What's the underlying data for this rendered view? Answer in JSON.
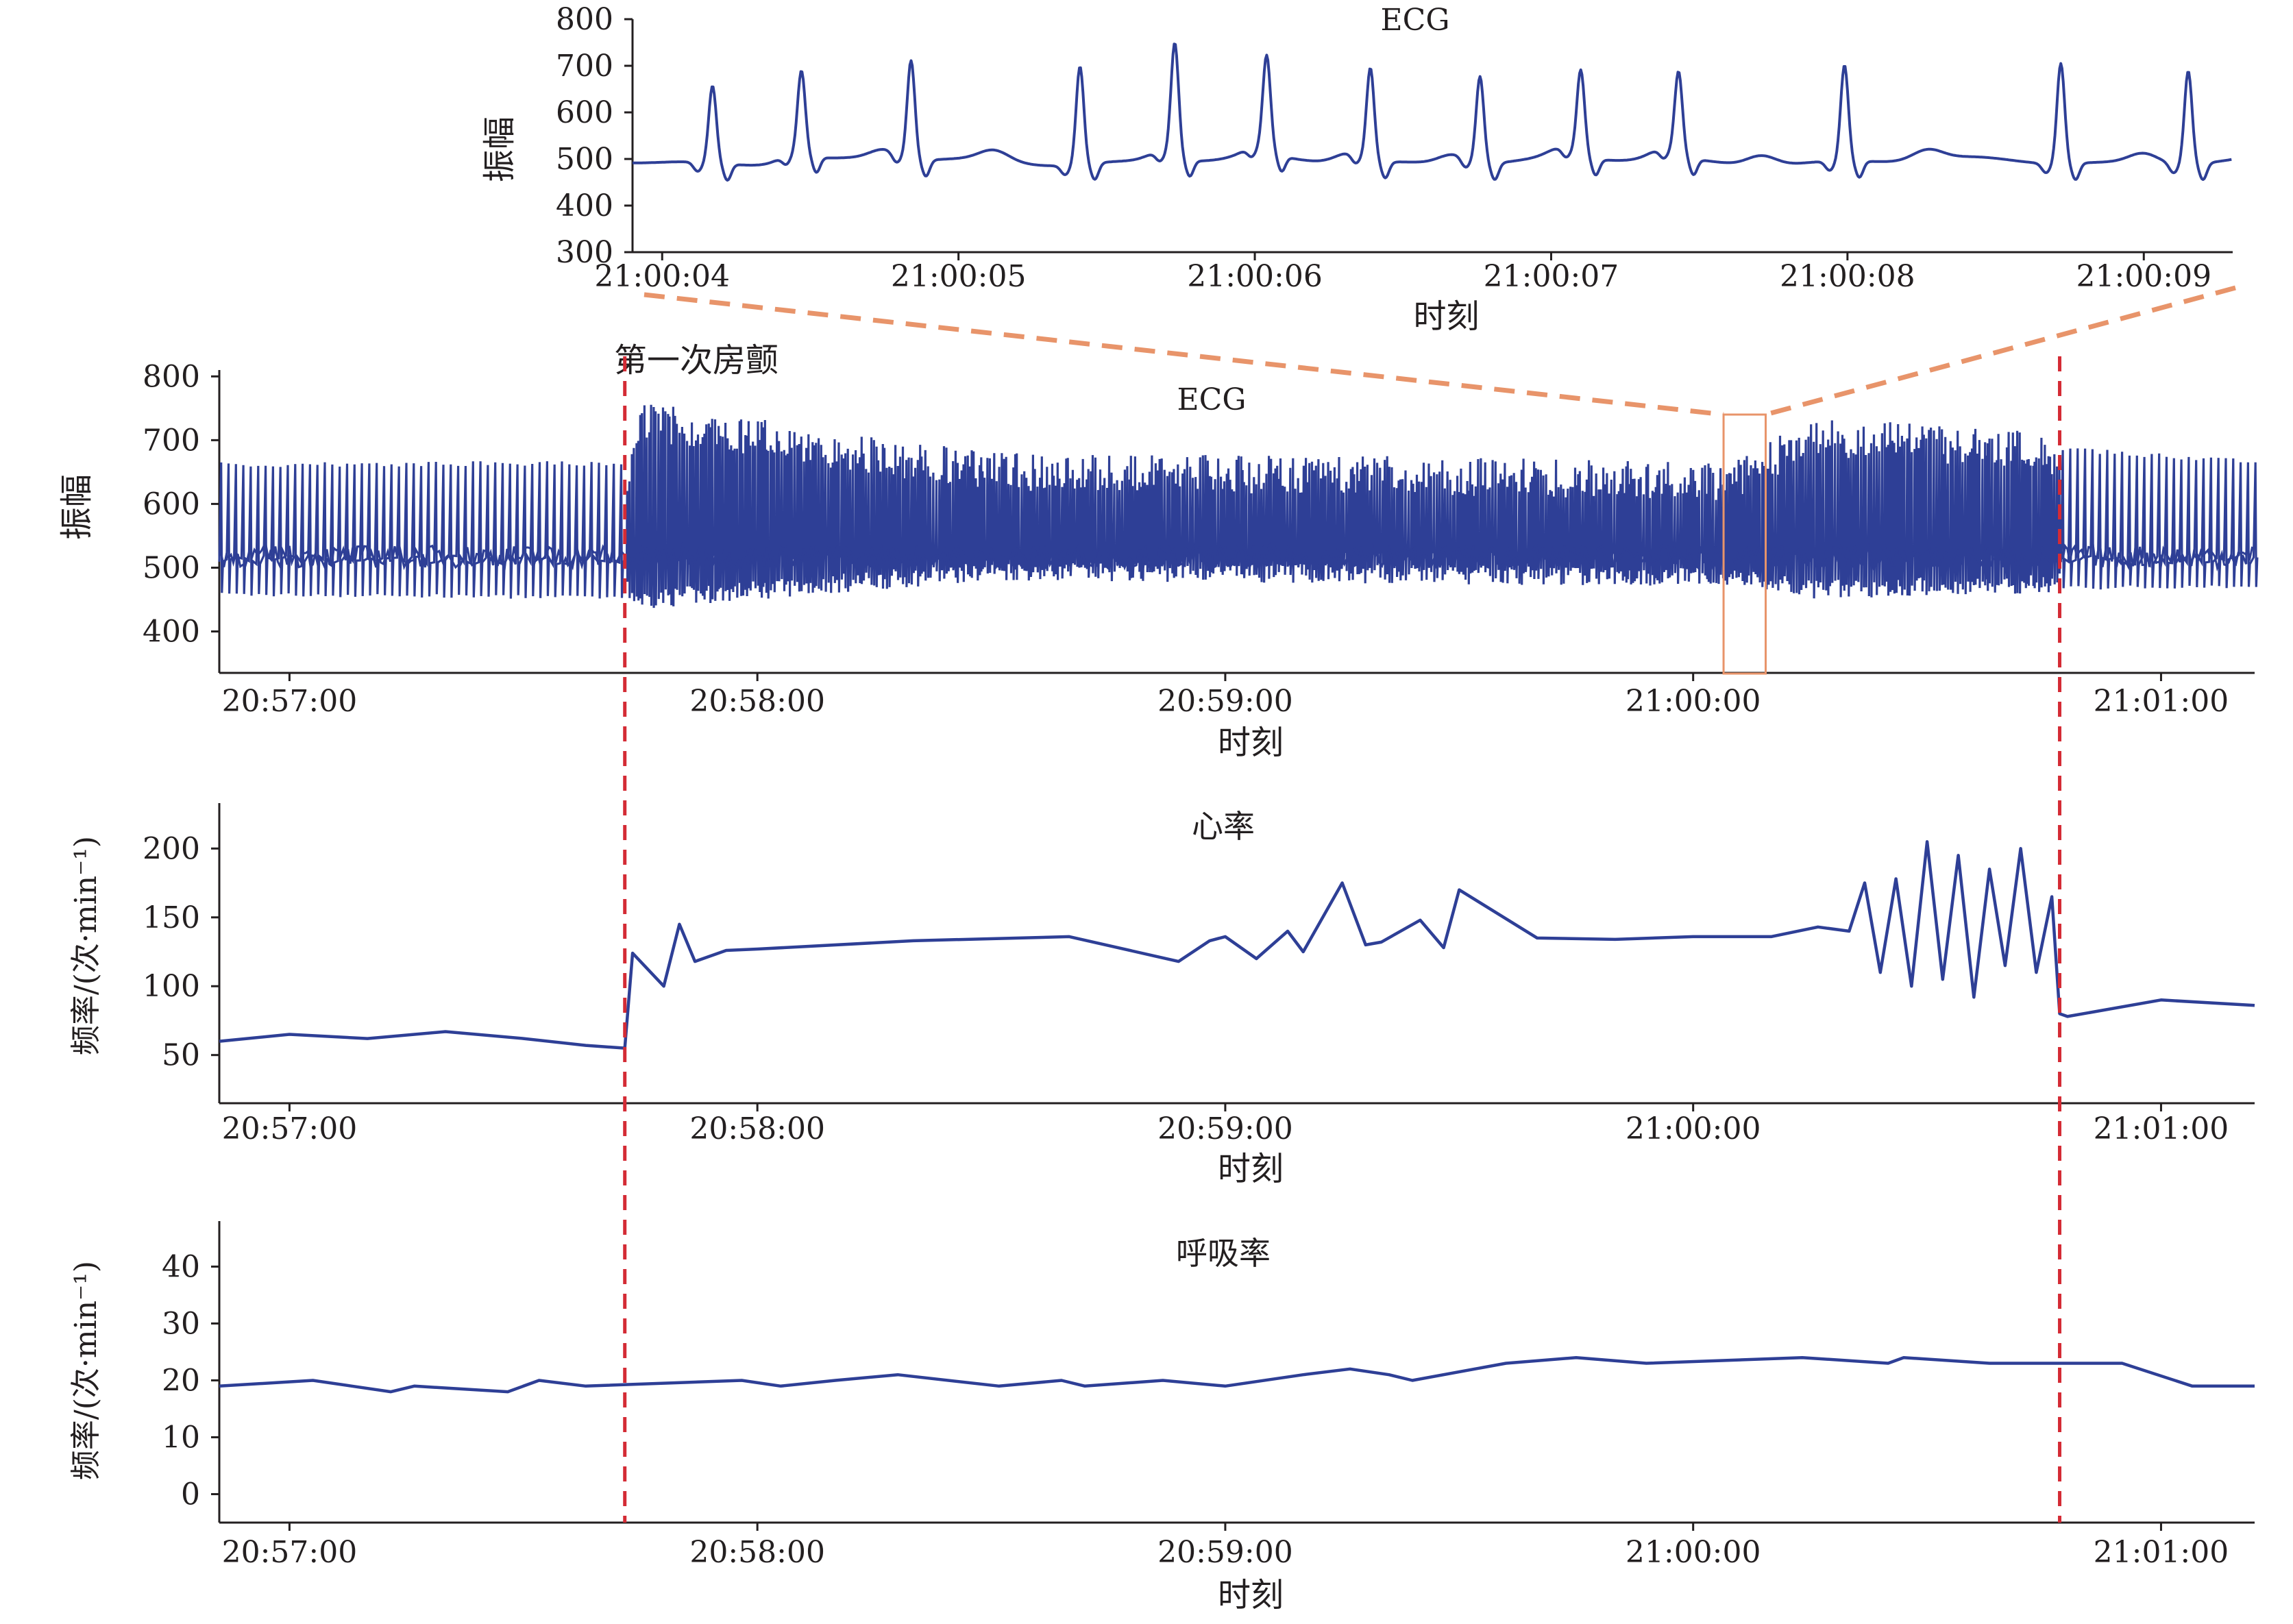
{
  "colors": {
    "series": "#2e3f96",
    "marker": "#d42b35",
    "zoom": "#e8946a",
    "axis": "#231f20"
  },
  "annotation": {
    "label": "第一次房颤",
    "af_start": "20:57:43",
    "af_end": "21:00:47"
  },
  "chart_data": [
    {
      "id": "ecg-zoom",
      "type": "line",
      "title": "ECG",
      "xlabel": "时刻",
      "ylabel": "振幅",
      "ylim": [
        300,
        800
      ],
      "xlim": [
        "21:00:03.9",
        "21:00:09.3"
      ],
      "yticks": [
        300,
        400,
        500,
        600,
        700,
        800
      ],
      "xticks": [
        "21:00:04",
        "21:00:05",
        "21:00:06",
        "21:00:07",
        "21:00:08",
        "21:00:09"
      ],
      "grid": false,
      "series": [
        {
          "r_peak_times_s": [
            4.17,
            4.47,
            4.84,
            5.41,
            5.73,
            6.04,
            6.39,
            6.76,
            7.1,
            7.43,
            7.99,
            8.72,
            9.15
          ],
          "r_peak_values": [
            660,
            670,
            705,
            705,
            735,
            695,
            690,
            680,
            675,
            670,
            700,
            710,
            695
          ],
          "baseline": 495
        }
      ]
    },
    {
      "id": "ecg-full",
      "type": "line",
      "title": "ECG",
      "xlabel": "时刻",
      "ylabel": "振幅",
      "ylim": [
        335,
        810
      ],
      "xlim": [
        "20:56:51",
        "21:01:12"
      ],
      "yticks": [
        400,
        500,
        600,
        700,
        800
      ],
      "xticks": [
        "20:57:00",
        "20:58:00",
        "20:59:00",
        "21:00:00",
        "21:01:00"
      ],
      "grid": false,
      "zoom_window": [
        "21:00:03.9",
        "21:00:09.3"
      ],
      "series": [
        {
          "envelope_times": [
            "20:56:51",
            "20:57:43",
            "20:57:45",
            "20:58:30",
            "20:59:20",
            "21:00:05",
            "21:00:15",
            "21:00:45",
            "21:00:47",
            "21:01:12"
          ],
          "upper": [
            665,
            668,
            760,
            680,
            675,
            665,
            735,
            715,
            690,
            670
          ],
          "lower": [
            455,
            450,
            435,
            480,
            475,
            470,
            450,
            460,
            465,
            468
          ]
        }
      ]
    },
    {
      "id": "heart-rate",
      "type": "line",
      "title": "心率",
      "xlabel": "时刻",
      "ylabel": "频率/(次·min⁻¹)",
      "ylim": [
        15,
        233
      ],
      "xlim": [
        "20:56:51",
        "21:01:12"
      ],
      "yticks": [
        50,
        100,
        150,
        200
      ],
      "xticks": [
        "20:57:00",
        "20:58:00",
        "20:59:00",
        "21:00:00",
        "21:01:00"
      ],
      "grid": false,
      "series": [
        {
          "times": [
            "20:56:51",
            "20:57:00",
            "20:57:10",
            "20:57:20",
            "20:57:30",
            "20:57:38",
            "20:57:43",
            "20:57:44",
            "20:57:48",
            "20:57:50",
            "20:57:52",
            "20:57:56",
            "20:58:00",
            "20:58:20",
            "20:58:40",
            "20:58:54",
            "20:58:58",
            "20:59:00",
            "20:59:04",
            "20:59:08",
            "20:59:10",
            "20:59:15",
            "20:59:18",
            "20:59:20",
            "20:59:25",
            "20:59:28",
            "20:59:30",
            "20:59:40",
            "20:59:50",
            "21:00:00",
            "21:00:10",
            "21:00:16",
            "21:00:20",
            "21:00:22",
            "21:00:24",
            "21:00:26",
            "21:00:28",
            "21:00:30",
            "21:00:32",
            "21:00:34",
            "21:00:36",
            "21:00:38",
            "21:00:40",
            "21:00:42",
            "21:00:44",
            "21:00:46",
            "21:00:47",
            "21:00:48",
            "21:01:00",
            "21:01:12"
          ],
          "values": [
            60,
            65,
            62,
            67,
            62,
            57,
            55,
            124,
            100,
            145,
            118,
            126,
            127,
            133,
            136,
            118,
            133,
            136,
            120,
            140,
            125,
            175,
            130,
            132,
            148,
            128,
            170,
            135,
            134,
            136,
            136,
            143,
            140,
            175,
            110,
            178,
            100,
            205,
            105,
            195,
            92,
            185,
            115,
            200,
            110,
            165,
            80,
            78,
            90,
            86
          ]
        }
      ]
    },
    {
      "id": "respiration-rate",
      "type": "line",
      "title": "呼吸率",
      "xlabel": "时刻",
      "ylabel": "频率/(次·min⁻¹)",
      "ylim": [
        -5,
        48
      ],
      "xlim": [
        "20:56:51",
        "21:01:12"
      ],
      "yticks": [
        0,
        10,
        20,
        30,
        40
      ],
      "xticks": [
        "20:57:00",
        "20:58:00",
        "20:59:00",
        "21:00:00",
        "21:01:00"
      ],
      "grid": false,
      "series": [
        {
          "times": [
            "20:56:51",
            "20:57:03",
            "20:57:08",
            "20:57:13",
            "20:57:16",
            "20:57:28",
            "20:57:32",
            "20:57:38",
            "20:57:58",
            "20:58:03",
            "20:58:10",
            "20:58:18",
            "20:58:31",
            "20:58:39",
            "20:58:42",
            "20:58:52",
            "20:59:00",
            "20:59:10",
            "20:59:16",
            "20:59:21",
            "20:59:24",
            "20:59:32",
            "20:59:36",
            "20:59:45",
            "20:59:54",
            "21:00:14",
            "21:00:25",
            "21:00:27",
            "21:00:38",
            "21:00:55",
            "21:01:04",
            "21:01:12"
          ],
          "values": [
            19,
            20,
            19,
            18,
            19,
            18,
            20,
            19,
            20,
            19,
            20,
            21,
            19,
            20,
            19,
            20,
            19,
            21,
            22,
            21,
            20,
            22,
            23,
            24,
            23,
            24,
            23,
            24,
            23,
            23,
            19,
            19
          ]
        }
      ]
    }
  ]
}
